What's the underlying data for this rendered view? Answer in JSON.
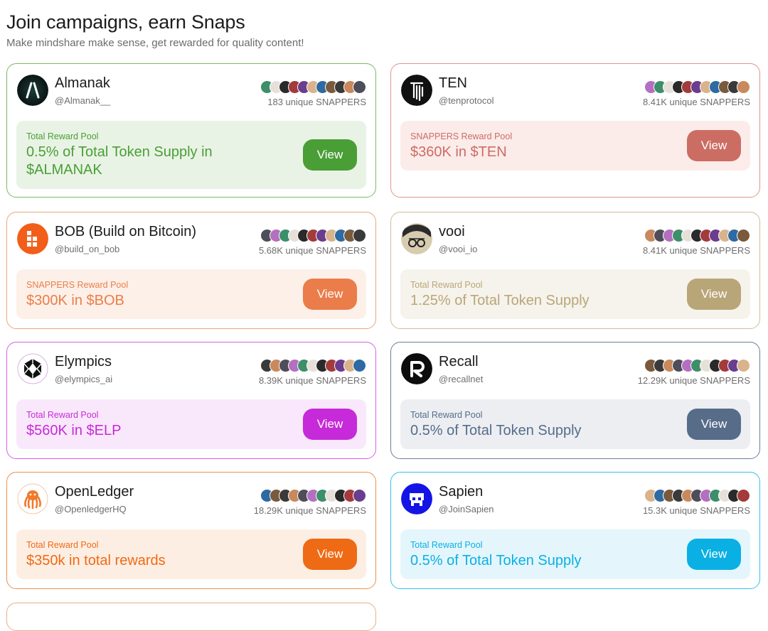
{
  "header": {
    "title": "Join campaigns, earn Snaps",
    "subtitle": "Make mindshare make sense, get rewarded for quality content!"
  },
  "view_label": "View",
  "cards": [
    {
      "name": "Almanak",
      "handle": "@Almanak__",
      "snappers": "183 unique SNAPPERS",
      "pool_label": "Total Reward Pool",
      "pool_value": "0.5% of Total Token Supply in $ALMANAK",
      "accent": "#4a9e36",
      "tint": "#e9f3e5",
      "border": "#7ab865",
      "logo": "almanak-logo-icon"
    },
    {
      "name": "TEN",
      "handle": "@tenprotocol",
      "snappers": "8.41K unique SNAPPERS",
      "pool_label": "SNAPPERS Reward Pool",
      "pool_value": "$360K in $TEN",
      "accent": "#cc6d63",
      "tint": "#fbecea",
      "border": "#e0958d",
      "logo": "ten-logo-icon"
    },
    {
      "name": "BOB (Build on Bitcoin)",
      "handle": "@build_on_bob",
      "snappers": "5.68K unique SNAPPERS",
      "pool_label": "SNAPPERS Reward Pool",
      "pool_value": "$300K in $BOB",
      "accent": "#ea7d4a",
      "tint": "#fdf0e8",
      "border": "#eba37f",
      "logo": "bob-logo-icon"
    },
    {
      "name": "vooi",
      "handle": "@vooi_io",
      "snappers": "8.41K unique SNAPPERS",
      "pool_label": "Total Reward Pool",
      "pool_value": "1.25% of Total Token Supply",
      "accent": "#b9a678",
      "tint": "#f6f3ec",
      "border": "#cdbf9a",
      "logo": "vooi-logo-icon"
    },
    {
      "name": "Elympics",
      "handle": "@elympics_ai",
      "snappers": "8.39K unique SNAPPERS",
      "pool_label": "Total Reward Pool",
      "pool_value": "$560K in $ELP",
      "accent": "#c72ad8",
      "tint": "#f9e8fb",
      "border": "#d462e0",
      "logo": "elympics-logo-icon"
    },
    {
      "name": "Recall",
      "handle": "@recallnet",
      "snappers": "12.29K unique SNAPPERS",
      "pool_label": "Total Reward Pool",
      "pool_value": "0.5% of Total Token Supply",
      "accent": "#566c89",
      "tint": "#eceef2",
      "border": "#6b7f99",
      "logo": "recall-logo-icon"
    },
    {
      "name": "OpenLedger",
      "handle": "@OpenledgerHQ",
      "snappers": "18.29K unique SNAPPERS",
      "pool_label": "Total Reward Pool",
      "pool_value": "$350k in total rewards",
      "accent": "#ef6a14",
      "tint": "#fdeee3",
      "border": "#ec9150",
      "logo": "octopus-logo-icon"
    },
    {
      "name": "Sapien",
      "handle": "@JoinSapien",
      "snappers": "15.3K unique SNAPPERS",
      "pool_label": "Total Reward Pool",
      "pool_value": "0.5% of Total Token Supply",
      "accent": "#0ab0e4",
      "tint": "#e4f6fc",
      "border": "#37bfe9",
      "logo": "sapien-logo-icon"
    }
  ],
  "avatar_colors": [
    "#4e4e5a",
    "#c9895c",
    "#3a3a3a",
    "#7a5a3c",
    "#2e6aa3",
    "#d9b38c",
    "#6a3d8f",
    "#a33b3b",
    "#2a2a2a",
    "#e6e0d8",
    "#3d8f6a",
    "#b56fc0"
  ]
}
